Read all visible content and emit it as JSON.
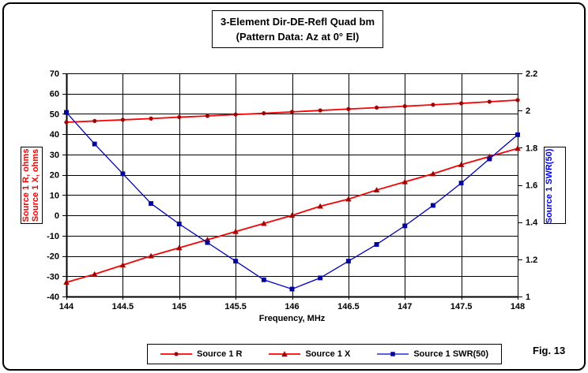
{
  "figure": {
    "label": "Fig. 13"
  },
  "title": {
    "line1": "3-Element Dir-DE-Refl Quad bm",
    "line2": "(Pattern Data: Az at 0° El)"
  },
  "axes": {
    "x": {
      "label": "Frequency, MHz",
      "ticks": [
        "144",
        "144.5",
        "145",
        "145.5",
        "146",
        "146.5",
        "147",
        "147.5",
        "148"
      ],
      "min": 144,
      "max": 148
    },
    "y_left": {
      "label_line1": "Source 1 R, ohms",
      "label_line2": "Source 1 X, ohms",
      "color": "#ff0000",
      "ticks": [
        "70",
        "60",
        "50",
        "40",
        "30",
        "20",
        "10",
        "0",
        "-10",
        "-20",
        "-30",
        "-40"
      ],
      "min": -40,
      "max": 70
    },
    "y_right": {
      "label": "Source 1 SWR(50)",
      "color": "#0000ff",
      "ticks": [
        "2.2",
        "2",
        "1.8",
        "1.6",
        "1.4",
        "1.2",
        "1"
      ],
      "min": 1,
      "max": 2.2
    }
  },
  "legend": {
    "items": [
      {
        "label": "Source 1 R",
        "marker": "circle",
        "line_color": "#ff0000",
        "marker_color": "#990000"
      },
      {
        "label": "Source 1 X",
        "marker": "triangle",
        "line_color": "#ff0000",
        "marker_color": "#990000"
      },
      {
        "label": "Source 1 SWR(50)",
        "marker": "square",
        "line_color": "#0000cc",
        "marker_color": "#000099"
      }
    ]
  },
  "chart_data": {
    "type": "line",
    "title": "3-Element Dir-DE-Refl Quad bm (Pattern Data: Az at 0° El)",
    "xlabel": "Frequency, MHz",
    "ylabel_left": "Source 1 R, ohms / Source 1 X, ohms",
    "ylabel_right": "Source 1 SWR(50)",
    "xlim": [
      144,
      148
    ],
    "ylim_left": [
      -40,
      70
    ],
    "ylim_right": [
      1,
      2.2
    ],
    "grid": true,
    "legend_position": "bottom",
    "x": [
      144,
      144.25,
      144.5,
      144.75,
      145,
      145.25,
      145.5,
      145.75,
      146,
      146.25,
      146.5,
      146.75,
      147,
      147.25,
      147.5,
      147.75,
      148
    ],
    "series": [
      {
        "name": "Source 1 R",
        "axis": "left",
        "units": "ohms",
        "line_color": "#ff0000",
        "marker": "circle",
        "marker_color": "#990000",
        "values": [
          45.9,
          46.5,
          47.1,
          47.7,
          48.4,
          49.0,
          49.7,
          50.3,
          51.0,
          51.7,
          52.4,
          53.1,
          53.8,
          54.5,
          55.2,
          56.0,
          56.8
        ]
      },
      {
        "name": "Source 1 X",
        "axis": "left",
        "units": "ohms",
        "line_color": "#ff0000",
        "marker": "triangle",
        "marker_color": "#990000",
        "values": [
          -33,
          -29,
          -24.5,
          -20,
          -16,
          -12,
          -8,
          -4,
          0,
          4.5,
          8,
          12.5,
          16.5,
          20.5,
          25,
          29,
          33
        ]
      },
      {
        "name": "Source 1 SWR(50)",
        "axis": "right",
        "units": "ratio",
        "line_color": "#0000cc",
        "marker": "square",
        "marker_color": "#000099",
        "values": [
          1.99,
          1.82,
          1.66,
          1.5,
          1.39,
          1.29,
          1.19,
          1.09,
          1.04,
          1.1,
          1.19,
          1.28,
          1.38,
          1.49,
          1.61,
          1.74,
          1.87
        ]
      }
    ]
  }
}
